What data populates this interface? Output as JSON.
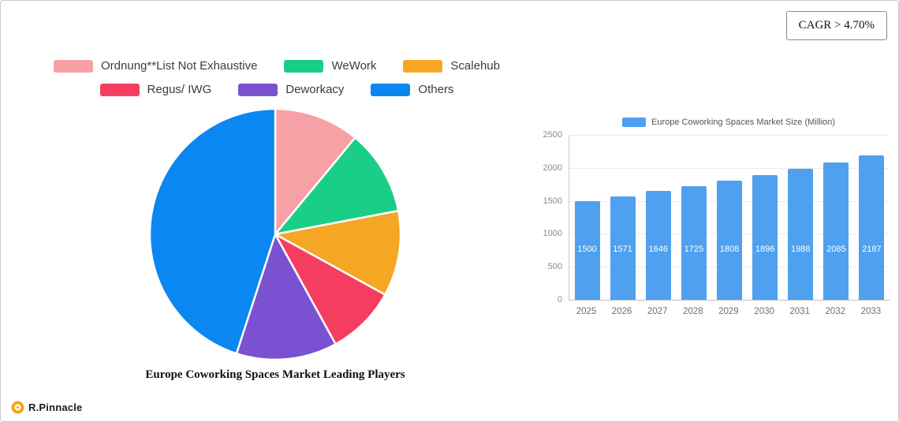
{
  "header": {
    "cagr_badge": "CAGR > 4.70%"
  },
  "footer": {
    "brand": "R.Pinnacle"
  },
  "chart_data": [
    {
      "type": "pie",
      "title": "Europe Coworking Spaces Market Leading Players",
      "legend_position": "top",
      "slices": [
        {
          "label": "Ordnung**List Not Exhaustive",
          "value": 11,
          "color": "#F7A1A6"
        },
        {
          "label": "WeWork",
          "value": 11,
          "color": "#19CF87"
        },
        {
          "label": "Scalehub",
          "value": 11,
          "color": "#F5A623"
        },
        {
          "label": "Regus/ IWG",
          "value": 9,
          "color": "#F53D5F"
        },
        {
          "label": "Deworkacy",
          "value": 13,
          "color": "#7A52D1"
        },
        {
          "label": "Others",
          "value": 45,
          "color": "#0A87F1"
        }
      ]
    },
    {
      "type": "bar",
      "legend": "Europe Coworking Spaces Market Size (Million)",
      "categories": [
        "2025",
        "2026",
        "2027",
        "2028",
        "2029",
        "2030",
        "2031",
        "2032",
        "2033"
      ],
      "values": [
        1500,
        1571,
        1646,
        1725,
        1808,
        1896,
        1988,
        2085,
        2187
      ],
      "bar_color": "#4FA1EF",
      "ylim": [
        0,
        2500
      ],
      "yticks": [
        0,
        500,
        1000,
        1500,
        2000,
        2500
      ],
      "grid": true,
      "legend_position": "top"
    }
  ]
}
